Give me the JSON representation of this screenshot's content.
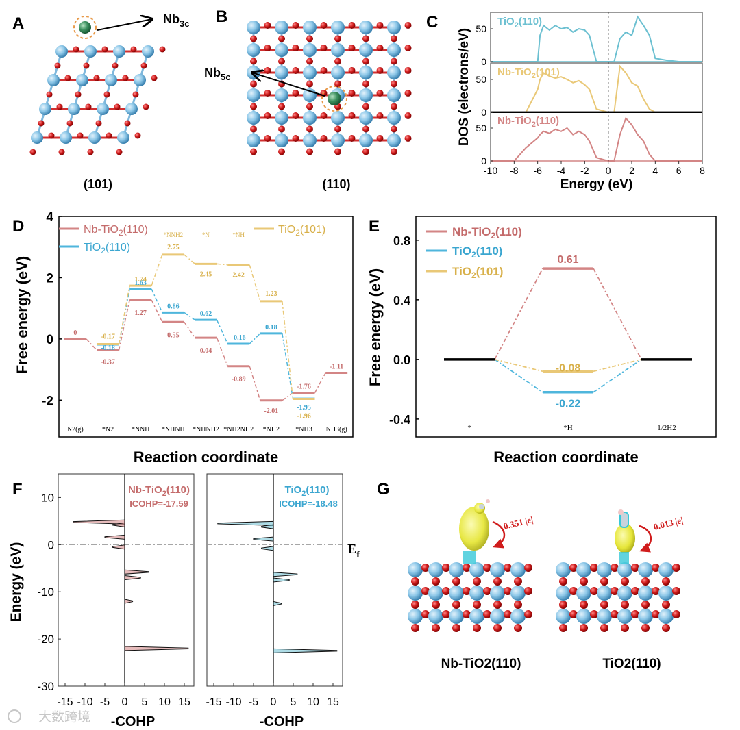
{
  "panels": {
    "A": "A",
    "B": "B",
    "C": "C",
    "D": "D",
    "E": "E",
    "F": "F",
    "G": "G"
  },
  "panel_a": {
    "caption": "(101)",
    "nb_label": "Nb",
    "nb_sub": "3c"
  },
  "panel_b": {
    "caption": "(110)",
    "nb_label": "Nb",
    "nb_sub": "5c"
  },
  "colors": {
    "red": "#d38585",
    "blue": "#4fb6dc",
    "yellow": "#e9c877",
    "teal": "#6cc0d1",
    "atom_ti": "#8cc7e8",
    "atom_o": "#d01c1c",
    "atom_nb": "#3d9160",
    "charge": "#e6e63a"
  },
  "chart_data": [
    {
      "id": "C",
      "type": "line",
      "title": "",
      "xlabel": "Energy (eV)",
      "ylabel": "DOS (electrons/eV)",
      "xlim": [
        -10,
        8
      ],
      "ylim": [
        0,
        75
      ],
      "xticks": [
        "-10",
        "-8",
        "-6",
        "-4",
        "-2",
        "0",
        "2",
        "4",
        "6",
        "8"
      ],
      "yticks": [
        "0",
        "50"
      ],
      "x": [
        -10,
        -8,
        -7,
        -6,
        -5.8,
        -5.5,
        -5,
        -4.5,
        -4,
        -3.5,
        -3,
        -2.5,
        -2,
        -1.6,
        -1,
        0,
        0.5,
        1,
        1.5,
        2,
        2.5,
        3,
        3.5,
        4,
        5,
        6,
        8
      ],
      "series": [
        {
          "name": "TiO2(110)",
          "y": [
            0,
            0,
            0,
            0,
            40,
            55,
            48,
            55,
            50,
            52,
            45,
            50,
            48,
            40,
            0,
            0,
            0,
            35,
            45,
            40,
            68,
            55,
            40,
            5,
            2,
            0,
            0
          ]
        },
        {
          "name": "Nb-TiO2(101)",
          "y": [
            0,
            0,
            0,
            35,
            50,
            60,
            55,
            52,
            54,
            50,
            45,
            48,
            42,
            35,
            5,
            0,
            0,
            70,
            60,
            45,
            40,
            20,
            5,
            0,
            0,
            0,
            0
          ]
        },
        {
          "name": "Nb-TiO2(110)",
          "y": [
            0,
            0,
            20,
            35,
            40,
            45,
            42,
            48,
            45,
            50,
            40,
            45,
            40,
            30,
            5,
            0,
            0,
            40,
            65,
            55,
            40,
            30,
            10,
            0,
            0,
            0,
            0
          ]
        }
      ]
    },
    {
      "id": "D",
      "type": "line",
      "title": "",
      "xlabel": "Reaction coordinate",
      "ylabel": "Free energy (eV)",
      "ylim": [
        -3.2,
        4
      ],
      "yticks": [
        "-2",
        "0",
        "2",
        "4"
      ],
      "categories": [
        "N2(g)",
        "*N2",
        "*NNH",
        "*NHNH",
        "*NHNH2",
        "*NH2NH2",
        "*NH2",
        "*NH3",
        "NH3(g)"
      ],
      "series": [
        {
          "name": "Nb-TiO2(110)",
          "values": [
            0,
            -0.37,
            1.27,
            0.55,
            0.04,
            -0.89,
            -2.01,
            -1.76,
            -1.11
          ],
          "labels": [
            "0",
            "-0.37",
            "1.27",
            "0.55",
            "0.04",
            "-0.89",
            "-2.01",
            "-1.76",
            "-1.11"
          ]
        },
        {
          "name": "TiO2(110)",
          "values": [
            null,
            -0.18,
            1.63,
            0.86,
            0.62,
            -0.16,
            0.18,
            -1.95,
            null
          ],
          "labels": [
            "",
            "-0.18",
            "1.63",
            "0.86",
            "0.62",
            "-0.16",
            "0.18",
            "-1.95",
            ""
          ]
        },
        {
          "name": "TiO2(101)",
          "values": [
            null,
            -0.17,
            1.74,
            2.75,
            2.45,
            2.42,
            1.23,
            -1.96,
            null
          ],
          "labels": [
            "",
            "-0.17",
            "1.74",
            "2.75",
            "2.45",
            "2.42",
            "1.23",
            "-1.96",
            ""
          ]
        }
      ],
      "top_labels": [
        "*NNH2",
        "*N",
        "*NH"
      ]
    },
    {
      "id": "E",
      "type": "line",
      "title": "",
      "xlabel": "Reaction coordinate",
      "ylabel": "Free energy (eV)",
      "ylim": [
        -0.52,
        0.96
      ],
      "yticks": [
        "-0.4",
        "0.0",
        "0.4",
        "0.8"
      ],
      "categories": [
        "*",
        "*H",
        "1/2H2"
      ],
      "series": [
        {
          "name": "Nb-TiO2(110)",
          "values": [
            0,
            0.61,
            0
          ],
          "label": "0.61"
        },
        {
          "name": "TiO2(110)",
          "values": [
            0,
            -0.22,
            0
          ],
          "label": "-0.22"
        },
        {
          "name": "TiO2(101)",
          "values": [
            0,
            -0.08,
            0
          ],
          "label": "-0.08"
        }
      ]
    },
    {
      "id": "F",
      "type": "line",
      "title": "",
      "xlabel": "-COHP",
      "ylabel": "Energy (eV)",
      "ylim": [
        -30,
        15
      ],
      "yticks": [
        "10",
        "0",
        "-10",
        "-20",
        "-30"
      ],
      "xticks": [
        "-15",
        "-10",
        "-5",
        "0",
        "5",
        "10",
        "15"
      ],
      "fermi_label": "E",
      "fermi_sub": "f",
      "series": [
        {
          "name": "Nb-TiO2(110)",
          "icohp": "ICOHP=-17.59",
          "peaks": [
            {
              "e": 4.8,
              "v": -13
            },
            {
              "e": 4.2,
              "v": -3
            },
            {
              "e": 1.6,
              "v": -5
            },
            {
              "e": -0.5,
              "v": -3
            },
            {
              "e": -5.8,
              "v": 6
            },
            {
              "e": -7.0,
              "v": 4
            },
            {
              "e": -12,
              "v": 2
            },
            {
              "e": -22,
              "v": 16
            }
          ]
        },
        {
          "name": "TiO2(110)",
          "icohp": "ICOHP=-18.48",
          "peaks": [
            {
              "e": 4.5,
              "v": -14
            },
            {
              "e": 3.8,
              "v": -3
            },
            {
              "e": 1.2,
              "v": -5
            },
            {
              "e": -0.8,
              "v": -3
            },
            {
              "e": -6.3,
              "v": 6
            },
            {
              "e": -7.5,
              "v": 4
            },
            {
              "e": -12.5,
              "v": 2
            },
            {
              "e": -22.5,
              "v": 16
            }
          ]
        }
      ]
    }
  ],
  "panel_g": {
    "left_caption": "Nb-TiO2(110)",
    "right_caption": "TiO2(110)",
    "left_charge": "0.351 |e|",
    "right_charge": "0.013 |e|"
  },
  "watermark": "大数跨境"
}
